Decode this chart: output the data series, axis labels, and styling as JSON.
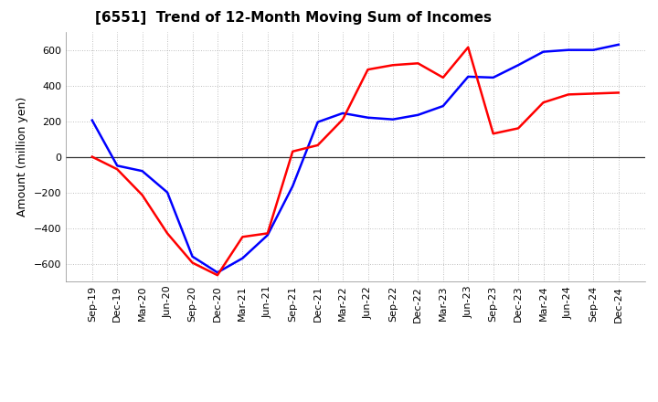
{
  "title": "[6551]  Trend of 12-Month Moving Sum of Incomes",
  "ylabel": "Amount (million yen)",
  "background_color": "#ffffff",
  "grid_color": "#aaaaaa",
  "ylim": [
    -700,
    700
  ],
  "yticks": [
    -600,
    -400,
    -200,
    0,
    200,
    400,
    600
  ],
  "x_labels": [
    "Sep-19",
    "Dec-19",
    "Mar-20",
    "Jun-20",
    "Sep-20",
    "Dec-20",
    "Mar-21",
    "Jun-21",
    "Sep-21",
    "Dec-21",
    "Mar-22",
    "Jun-22",
    "Sep-22",
    "Dec-22",
    "Mar-23",
    "Jun-23",
    "Sep-23",
    "Dec-23",
    "Mar-24",
    "Jun-24",
    "Sep-24",
    "Dec-24"
  ],
  "ordinary_income": [
    205,
    -50,
    -80,
    -200,
    -560,
    -650,
    -570,
    -440,
    -165,
    195,
    245,
    220,
    210,
    235,
    285,
    450,
    445,
    515,
    590,
    600,
    600,
    630
  ],
  "net_income": [
    0,
    -70,
    -215,
    -430,
    -595,
    -665,
    -450,
    -430,
    30,
    65,
    210,
    490,
    515,
    525,
    445,
    615,
    130,
    160,
    305,
    350,
    355,
    360
  ],
  "ordinary_color": "#0000ff",
  "net_color": "#ff0000",
  "line_width": 1.8,
  "title_fontsize": 11,
  "ylabel_fontsize": 9,
  "tick_fontsize": 8,
  "legend_fontsize": 9
}
